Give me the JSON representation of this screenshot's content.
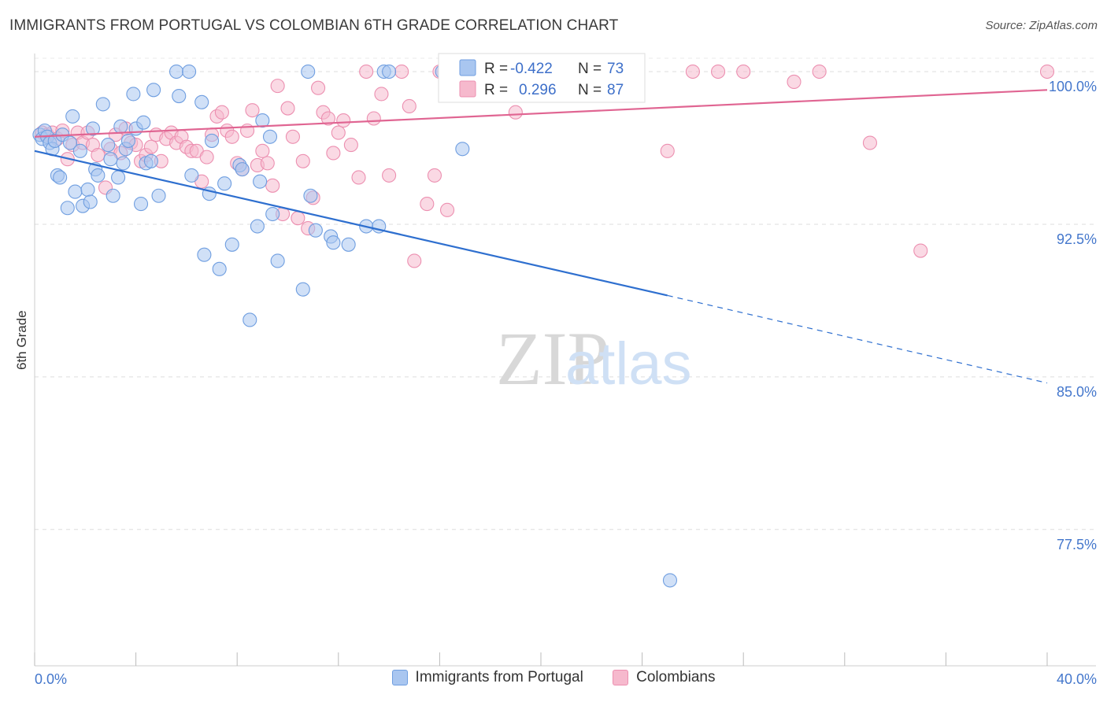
{
  "title": "IMMIGRANTS FROM PORTUGAL VS COLOMBIAN 6TH GRADE CORRELATION CHART",
  "source": "Source: ZipAtlas.com",
  "watermark": {
    "zip": "ZIP",
    "atlas": "atlas"
  },
  "colors": {
    "portugal_fill": "#a9c6f0",
    "portugal_stroke": "#6f9ee0",
    "portugal_line": "#2e6fcf",
    "colombian_fill": "#f6b9cd",
    "colombian_stroke": "#ec8fb0",
    "colombian_line": "#e06592",
    "tick_label": "#4477cc",
    "grid": "#dddddd"
  },
  "stats": [
    {
      "r_label": "R =",
      "r_value": "-0.422",
      "n_label": "N =",
      "n_value": "73"
    },
    {
      "r_label": "R =",
      "r_value": "0.296",
      "n_label": "N =",
      "n_value": "87"
    }
  ],
  "chart_data": {
    "type": "scatter",
    "xlabel": "",
    "ylabel": "6th Grade",
    "xlim": [
      0,
      40
    ],
    "ylim": [
      70.8,
      101.2
    ],
    "x_tick_labels": [
      {
        "value": 0,
        "label": "0.0%"
      },
      {
        "value": 40,
        "label": "40.0%"
      }
    ],
    "y_tick_labels": [
      {
        "value": 100,
        "label": "100.0%"
      },
      {
        "value": 92.5,
        "label": "92.5%"
      },
      {
        "value": 85,
        "label": "85.0%"
      },
      {
        "value": 77.5,
        "label": "77.5%"
      }
    ],
    "grid": true,
    "legend_position": "bottom-center",
    "series": [
      {
        "name": "Immigrants from Portugal",
        "trend": {
          "x": [
            0,
            25
          ],
          "y": [
            96.1,
            89.0
          ],
          "dashed_to": [
            40,
            84.7
          ]
        },
        "points": [
          [
            0.2,
            96.9
          ],
          [
            0.3,
            96.7
          ],
          [
            0.4,
            97.1
          ],
          [
            0.5,
            96.8
          ],
          [
            0.6,
            96.5
          ],
          [
            0.7,
            96.2
          ],
          [
            0.8,
            96.6
          ],
          [
            0.9,
            94.9
          ],
          [
            1.0,
            94.8
          ],
          [
            1.1,
            96.9
          ],
          [
            1.3,
            93.3
          ],
          [
            1.4,
            96.5
          ],
          [
            1.5,
            97.8
          ],
          [
            1.6,
            94.1
          ],
          [
            1.8,
            96.1
          ],
          [
            1.9,
            93.4
          ],
          [
            2.1,
            94.2
          ],
          [
            2.2,
            93.6
          ],
          [
            2.3,
            97.2
          ],
          [
            2.4,
            95.2
          ],
          [
            2.5,
            94.9
          ],
          [
            2.7,
            98.4
          ],
          [
            2.9,
            96.4
          ],
          [
            3.0,
            95.7
          ],
          [
            3.1,
            93.9
          ],
          [
            3.3,
            94.8
          ],
          [
            3.4,
            97.3
          ],
          [
            3.5,
            95.5
          ],
          [
            3.6,
            96.2
          ],
          [
            3.7,
            96.6
          ],
          [
            3.9,
            98.9
          ],
          [
            4.0,
            97.2
          ],
          [
            4.2,
            93.5
          ],
          [
            4.3,
            97.5
          ],
          [
            4.4,
            95.5
          ],
          [
            4.6,
            95.6
          ],
          [
            4.7,
            99.1
          ],
          [
            4.9,
            93.9
          ],
          [
            5.6,
            100.0
          ],
          [
            5.7,
            98.8
          ],
          [
            6.1,
            100.0
          ],
          [
            6.2,
            94.9
          ],
          [
            6.6,
            98.5
          ],
          [
            6.7,
            91.0
          ],
          [
            6.9,
            94.0
          ],
          [
            7.0,
            96.6
          ],
          [
            7.3,
            90.3
          ],
          [
            7.5,
            94.5
          ],
          [
            7.8,
            91.5
          ],
          [
            8.1,
            95.4
          ],
          [
            8.2,
            95.2
          ],
          [
            8.5,
            87.8
          ],
          [
            8.8,
            92.4
          ],
          [
            8.9,
            94.6
          ],
          [
            9.0,
            97.6
          ],
          [
            9.3,
            96.8
          ],
          [
            9.4,
            93.0
          ],
          [
            9.6,
            90.7
          ],
          [
            10.6,
            89.3
          ],
          [
            10.8,
            100.0
          ],
          [
            10.9,
            93.9
          ],
          [
            11.1,
            92.2
          ],
          [
            11.7,
            91.9
          ],
          [
            11.8,
            91.6
          ],
          [
            12.4,
            91.5
          ],
          [
            13.1,
            92.4
          ],
          [
            13.6,
            92.4
          ],
          [
            13.8,
            100.0
          ],
          [
            14.0,
            100.0
          ],
          [
            16.1,
            100.0
          ],
          [
            16.9,
            96.2
          ],
          [
            18.9,
            100.0
          ],
          [
            25.1,
            75.0
          ]
        ]
      },
      {
        "name": "Colombians",
        "trend": {
          "x": [
            0,
            40
          ],
          "y": [
            96.8,
            99.1
          ]
        },
        "points": [
          [
            0.3,
            97.0
          ],
          [
            0.5,
            96.9
          ],
          [
            0.7,
            97.0
          ],
          [
            0.9,
            96.7
          ],
          [
            1.1,
            97.1
          ],
          [
            1.3,
            95.7
          ],
          [
            1.5,
            96.4
          ],
          [
            1.7,
            97.0
          ],
          [
            1.9,
            96.5
          ],
          [
            2.1,
            97.0
          ],
          [
            2.3,
            96.4
          ],
          [
            2.5,
            95.9
          ],
          [
            2.8,
            94.3
          ],
          [
            3.0,
            96.2
          ],
          [
            3.2,
            96.9
          ],
          [
            3.4,
            96.0
          ],
          [
            3.6,
            97.2
          ],
          [
            3.8,
            96.5
          ],
          [
            4.0,
            96.4
          ],
          [
            4.2,
            95.6
          ],
          [
            4.4,
            95.9
          ],
          [
            4.6,
            96.3
          ],
          [
            4.8,
            96.9
          ],
          [
            5.0,
            95.6
          ],
          [
            5.2,
            96.7
          ],
          [
            5.4,
            97.0
          ],
          [
            5.6,
            96.5
          ],
          [
            5.8,
            96.8
          ],
          [
            6.0,
            96.3
          ],
          [
            6.2,
            96.1
          ],
          [
            6.4,
            96.1
          ],
          [
            6.6,
            94.6
          ],
          [
            6.8,
            95.8
          ],
          [
            7.0,
            96.9
          ],
          [
            7.2,
            97.8
          ],
          [
            7.4,
            98.0
          ],
          [
            7.6,
            97.1
          ],
          [
            7.8,
            96.8
          ],
          [
            8.0,
            95.5
          ],
          [
            8.2,
            95.2
          ],
          [
            8.4,
            97.1
          ],
          [
            8.6,
            98.1
          ],
          [
            8.8,
            95.4
          ],
          [
            9.0,
            96.1
          ],
          [
            9.2,
            95.5
          ],
          [
            9.4,
            94.4
          ],
          [
            9.6,
            99.3
          ],
          [
            9.8,
            93.0
          ],
          [
            10.0,
            98.2
          ],
          [
            10.2,
            96.8
          ],
          [
            10.4,
            92.8
          ],
          [
            10.6,
            95.6
          ],
          [
            10.8,
            92.3
          ],
          [
            11.0,
            93.8
          ],
          [
            11.2,
            99.2
          ],
          [
            11.4,
            98.0
          ],
          [
            11.6,
            97.7
          ],
          [
            11.8,
            96.0
          ],
          [
            12.0,
            97.0
          ],
          [
            12.2,
            97.6
          ],
          [
            12.5,
            96.4
          ],
          [
            12.8,
            94.8
          ],
          [
            13.1,
            100.0
          ],
          [
            13.4,
            97.7
          ],
          [
            13.7,
            98.9
          ],
          [
            14.0,
            94.9
          ],
          [
            14.5,
            100.0
          ],
          [
            14.8,
            98.3
          ],
          [
            15.0,
            90.7
          ],
          [
            15.5,
            93.5
          ],
          [
            15.8,
            94.9
          ],
          [
            16.0,
            100.0
          ],
          [
            16.3,
            93.2
          ],
          [
            17.0,
            100.0
          ],
          [
            18.0,
            100.0
          ],
          [
            19.0,
            98.0
          ],
          [
            20.0,
            100.0
          ],
          [
            22.0,
            100.0
          ],
          [
            25.0,
            96.1
          ],
          [
            26.0,
            100.0
          ],
          [
            27.0,
            100.0
          ],
          [
            28.0,
            100.0
          ],
          [
            30.0,
            99.5
          ],
          [
            31.0,
            100.0
          ],
          [
            33.0,
            96.5
          ],
          [
            35.0,
            91.2
          ],
          [
            40.0,
            100.0
          ]
        ]
      }
    ]
  }
}
